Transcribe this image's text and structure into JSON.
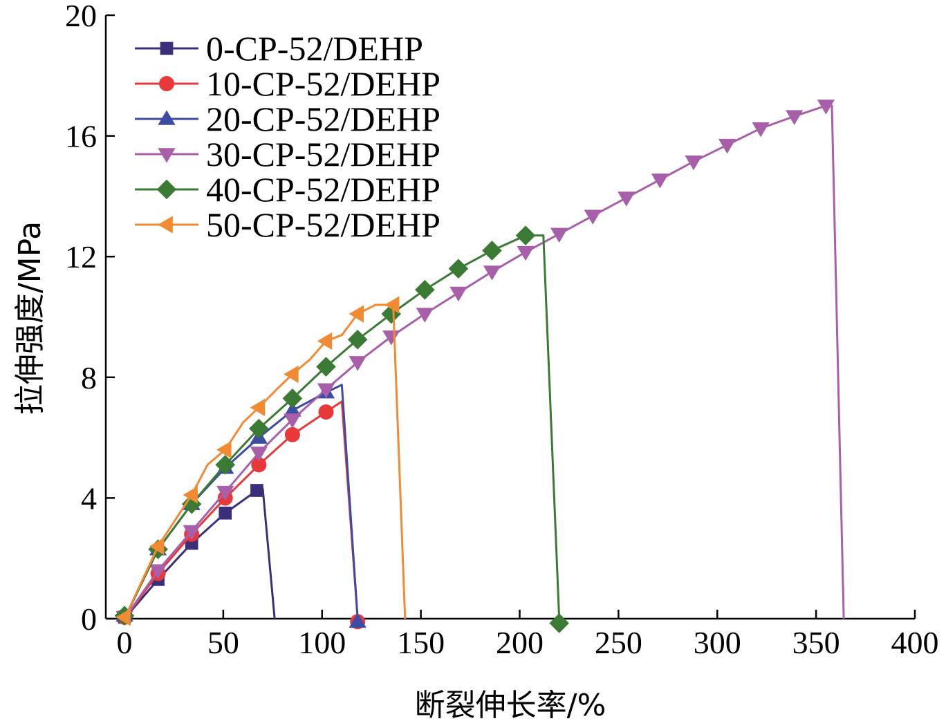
{
  "chart_data": {
    "type": "line",
    "xlabel": "断裂伸长率/%",
    "ylabel": "拉伸强度/MPa",
    "xlim": [
      0,
      400
    ],
    "ylim": [
      0,
      20
    ],
    "x_ticks": [
      0,
      50,
      100,
      150,
      200,
      250,
      300,
      350,
      400
    ],
    "y_ticks": [
      0,
      4,
      8,
      12,
      16,
      20
    ],
    "grid": false,
    "legend_position": "top-left",
    "series": [
      {
        "name": "0-CP-52/DEHP",
        "color": "#3b2f7a",
        "marker": "square",
        "line": [
          [
            0,
            0
          ],
          [
            17,
            1.3
          ],
          [
            34,
            2.5
          ],
          [
            51,
            3.5
          ],
          [
            67,
            4.25
          ],
          [
            70,
            4.3
          ],
          [
            76,
            0
          ]
        ],
        "markers": [
          [
            0,
            0.05
          ],
          [
            17,
            1.3
          ],
          [
            34,
            2.5
          ],
          [
            51,
            3.5
          ],
          [
            67,
            4.25
          ]
        ]
      },
      {
        "name": "10-CP-52/DEHP",
        "color": "#e8383a",
        "marker": "circle",
        "line": [
          [
            0,
            0
          ],
          [
            17,
            1.5
          ],
          [
            34,
            2.8
          ],
          [
            51,
            4.0
          ],
          [
            68,
            5.1
          ],
          [
            85,
            6.1
          ],
          [
            102,
            6.85
          ],
          [
            110,
            7.2
          ],
          [
            118,
            0
          ]
        ],
        "markers": [
          [
            0,
            0.05
          ],
          [
            17,
            1.5
          ],
          [
            34,
            2.8
          ],
          [
            51,
            4.0
          ],
          [
            68,
            5.1
          ],
          [
            85,
            6.1
          ],
          [
            102,
            6.85
          ],
          [
            118,
            -0.1
          ]
        ]
      },
      {
        "name": "20-CP-52/DEHP",
        "color": "#3e4ba3",
        "marker": "triangle-up",
        "line": [
          [
            0,
            0
          ],
          [
            17,
            2.3
          ],
          [
            34,
            3.8
          ],
          [
            51,
            5.0
          ],
          [
            68,
            6.0
          ],
          [
            85,
            6.9
          ],
          [
            102,
            7.5
          ],
          [
            110,
            7.75
          ],
          [
            118,
            0
          ]
        ],
        "markers": [
          [
            0,
            0.1
          ],
          [
            17,
            2.3
          ],
          [
            34,
            3.8
          ],
          [
            51,
            5.0
          ],
          [
            68,
            6.0
          ],
          [
            85,
            6.9
          ],
          [
            102,
            7.5
          ],
          [
            118,
            -0.1
          ]
        ]
      },
      {
        "name": "30-CP-52/DEHP",
        "color": "#a85fa9",
        "marker": "triangle-down",
        "line": [
          [
            0,
            0
          ],
          [
            17,
            1.6
          ],
          [
            34,
            2.9
          ],
          [
            51,
            4.2
          ],
          [
            68,
            5.5
          ],
          [
            85,
            6.6
          ],
          [
            102,
            7.6
          ],
          [
            118,
            8.5
          ],
          [
            135,
            9.35
          ],
          [
            152,
            10.1
          ],
          [
            169,
            10.8
          ],
          [
            186,
            11.5
          ],
          [
            203,
            12.15
          ],
          [
            220,
            12.75
          ],
          [
            237,
            13.35
          ],
          [
            254,
            13.95
          ],
          [
            271,
            14.55
          ],
          [
            288,
            15.15
          ],
          [
            305,
            15.7
          ],
          [
            322,
            16.25
          ],
          [
            339,
            16.65
          ],
          [
            355,
            17.0
          ],
          [
            358,
            17.0
          ],
          [
            364,
            0
          ]
        ],
        "markers": [
          [
            0,
            0.05
          ],
          [
            17,
            1.6
          ],
          [
            34,
            2.9
          ],
          [
            51,
            4.2
          ],
          [
            68,
            5.5
          ],
          [
            85,
            6.6
          ],
          [
            102,
            7.6
          ],
          [
            118,
            8.5
          ],
          [
            135,
            9.35
          ],
          [
            152,
            10.1
          ],
          [
            169,
            10.8
          ],
          [
            186,
            11.5
          ],
          [
            203,
            12.15
          ],
          [
            220,
            12.75
          ],
          [
            237,
            13.35
          ],
          [
            254,
            13.95
          ],
          [
            271,
            14.55
          ],
          [
            288,
            15.15
          ],
          [
            305,
            15.7
          ],
          [
            322,
            16.25
          ],
          [
            339,
            16.65
          ],
          [
            355,
            17.0
          ]
        ]
      },
      {
        "name": "40-CP-52/DEHP",
        "color": "#3b7a35",
        "marker": "diamond",
        "line": [
          [
            0,
            0
          ],
          [
            17,
            2.3
          ],
          [
            34,
            3.8
          ],
          [
            51,
            5.1
          ],
          [
            68,
            6.3
          ],
          [
            85,
            7.3
          ],
          [
            102,
            8.35
          ],
          [
            118,
            9.25
          ],
          [
            135,
            10.1
          ],
          [
            152,
            10.9
          ],
          [
            169,
            11.6
          ],
          [
            186,
            12.2
          ],
          [
            203,
            12.7
          ],
          [
            212,
            12.7
          ],
          [
            220,
            0
          ]
        ],
        "markers": [
          [
            0,
            0.1
          ],
          [
            17,
            2.3
          ],
          [
            34,
            3.8
          ],
          [
            51,
            5.1
          ],
          [
            68,
            6.3
          ],
          [
            85,
            7.3
          ],
          [
            102,
            8.35
          ],
          [
            118,
            9.25
          ],
          [
            135,
            10.1
          ],
          [
            152,
            10.9
          ],
          [
            169,
            11.6
          ],
          [
            186,
            12.2
          ],
          [
            203,
            12.7
          ],
          [
            220,
            -0.15
          ]
        ]
      },
      {
        "name": "50-CP-52/DEHP",
        "color": "#f08a33",
        "marker": "triangle-left",
        "line": [
          [
            0,
            0
          ],
          [
            17,
            2.4
          ],
          [
            34,
            4.1
          ],
          [
            42,
            5.1
          ],
          [
            51,
            5.6
          ],
          [
            60,
            6.5
          ],
          [
            68,
            7.0
          ],
          [
            77,
            7.6
          ],
          [
            85,
            8.1
          ],
          [
            94,
            8.6
          ],
          [
            102,
            9.2
          ],
          [
            110,
            9.4
          ],
          [
            118,
            10.1
          ],
          [
            127,
            10.4
          ],
          [
            136,
            10.4
          ],
          [
            142,
            0
          ]
        ],
        "markers": [
          [
            0,
            0.05
          ],
          [
            17,
            2.4
          ],
          [
            34,
            4.1
          ],
          [
            51,
            5.6
          ],
          [
            68,
            7.0
          ],
          [
            85,
            8.1
          ],
          [
            102,
            9.2
          ],
          [
            118,
            10.1
          ],
          [
            136,
            10.4
          ]
        ]
      }
    ]
  }
}
